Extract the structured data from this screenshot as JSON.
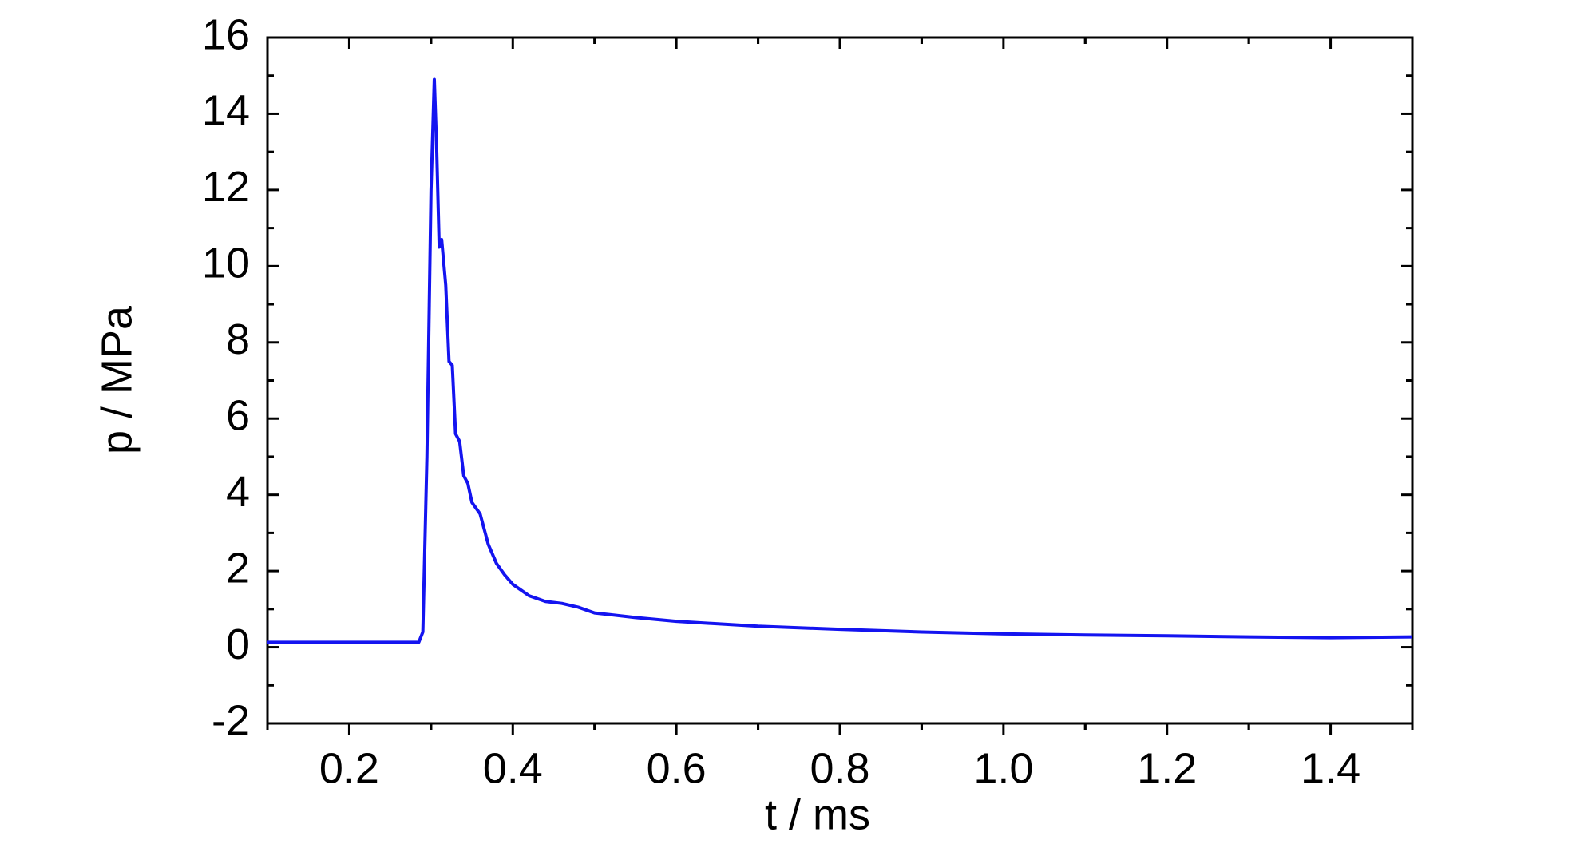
{
  "chart_data": {
    "type": "line",
    "x_label": "t / ms",
    "y_label": "p / MPa",
    "xlim": [
      0.1,
      1.5
    ],
    "ylim": [
      -2,
      16
    ],
    "xticks": [
      0.2,
      0.4,
      0.6,
      0.8,
      {
        "value": 1,
        "label": "1.0"
      },
      1.2,
      1.4
    ],
    "yticks": [
      -2,
      0,
      2,
      4,
      6,
      8,
      10,
      12,
      14,
      16
    ],
    "grid": false,
    "series": [
      {
        "color": "#1414f0",
        "x": [
          0.1,
          0.2,
          0.285,
          0.29,
          0.295,
          0.3,
          0.304,
          0.307,
          0.31,
          0.313,
          0.318,
          0.322,
          0.326,
          0.33,
          0.335,
          0.34,
          0.345,
          0.35,
          0.36,
          0.37,
          0.38,
          0.39,
          0.4,
          0.42,
          0.44,
          0.46,
          0.48,
          0.5,
          0.55,
          0.6,
          0.7,
          0.8,
          0.9,
          1.0,
          1.1,
          1.2,
          1.3,
          1.4,
          1.5
        ],
        "values": [
          0.13,
          0.13,
          0.13,
          0.4,
          5,
          12,
          14.9,
          13,
          10.5,
          10.7,
          9.5,
          7.5,
          7.4,
          5.6,
          5.4,
          4.5,
          4.3,
          3.8,
          3.5,
          2.7,
          2.2,
          1.9,
          1.65,
          1.35,
          1.2,
          1.15,
          1.05,
          0.9,
          0.78,
          0.68,
          0.55,
          0.47,
          0.4,
          0.35,
          0.32,
          0.3,
          0.27,
          0.25,
          0.27
        ]
      }
    ]
  }
}
